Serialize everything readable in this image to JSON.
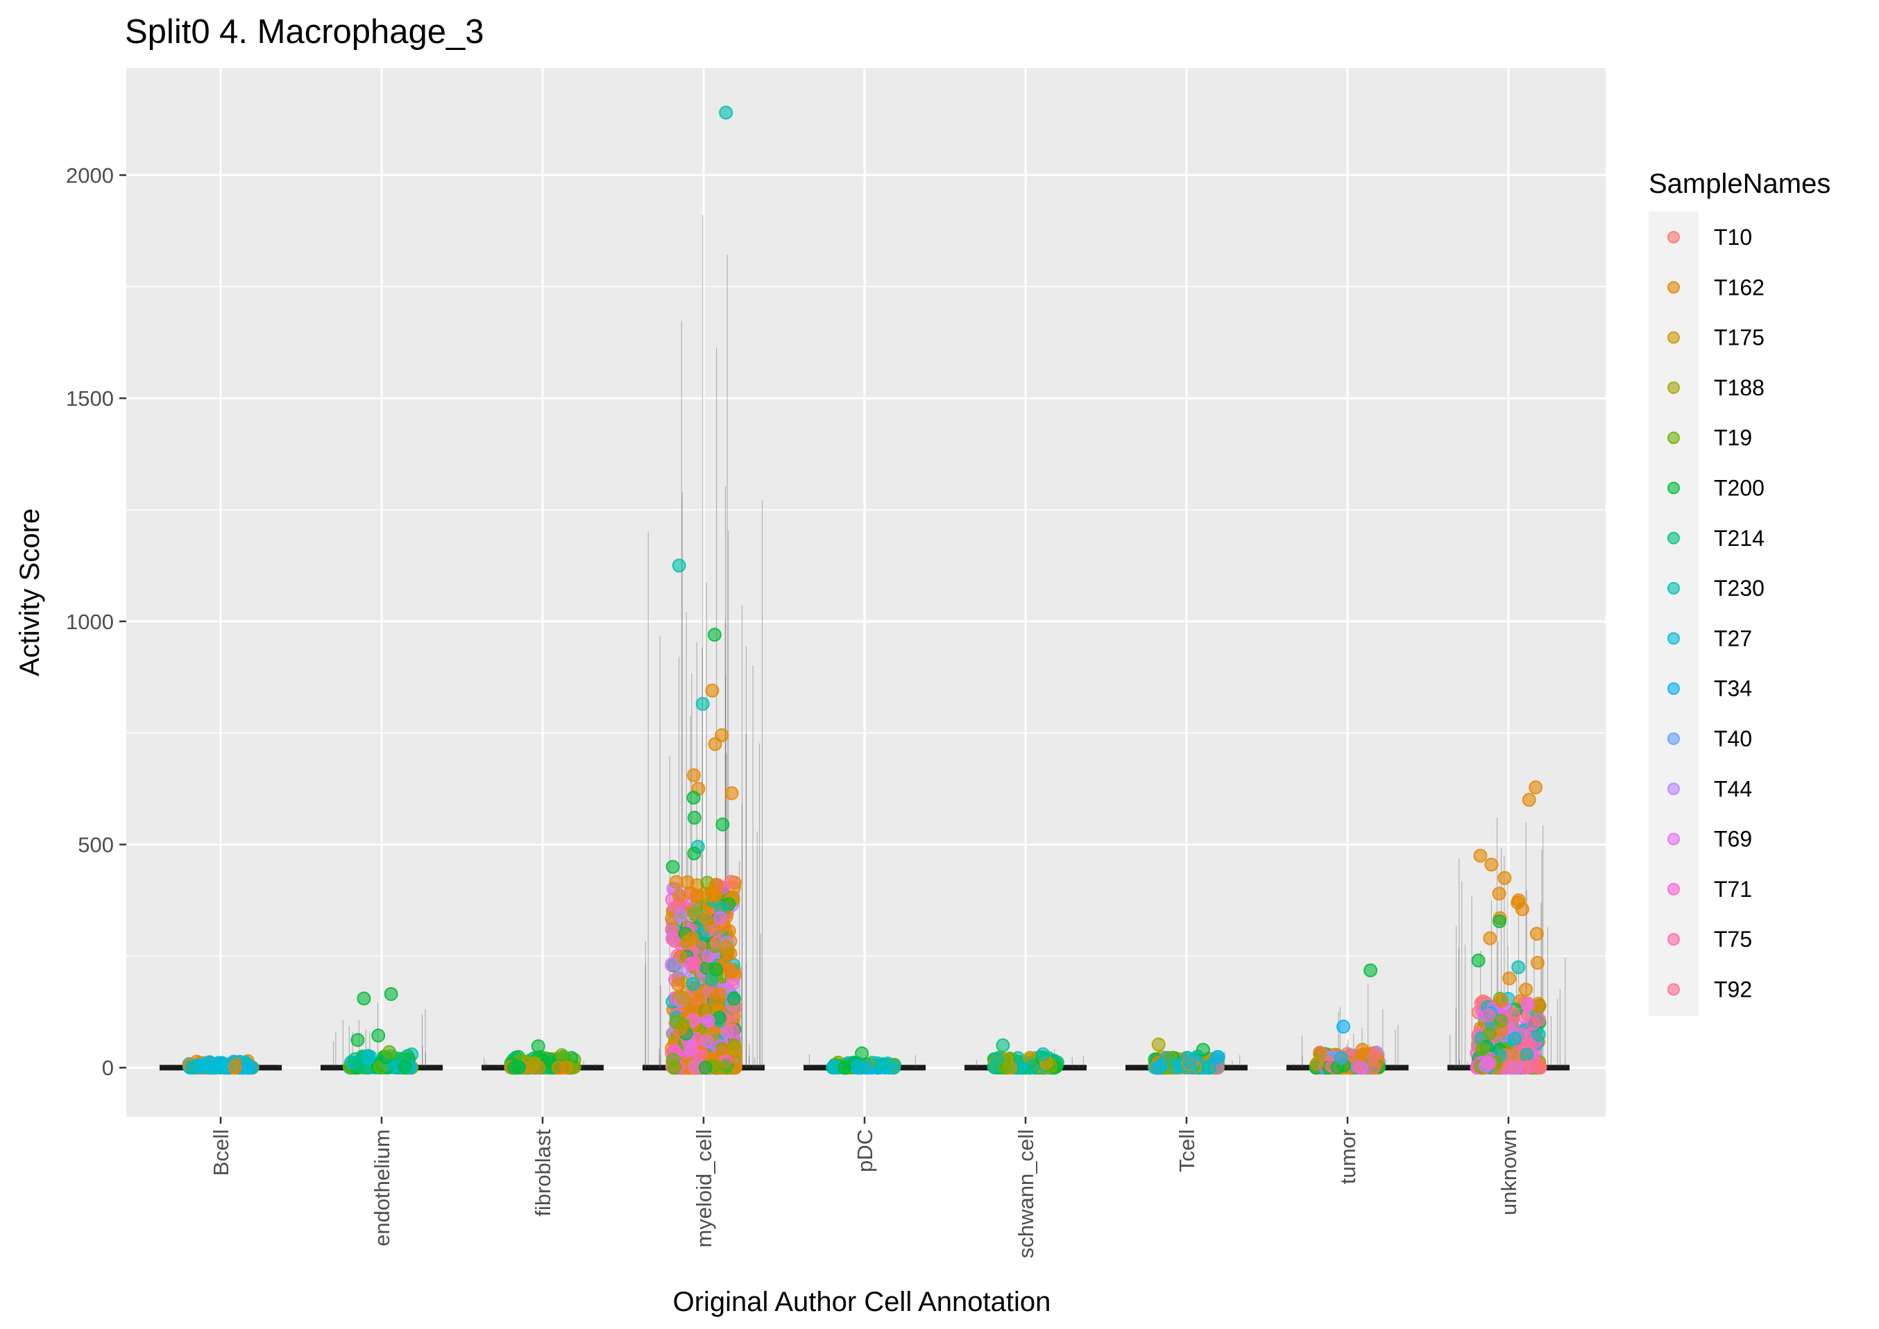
{
  "chart_data": {
    "type": "scatter",
    "subtype": "jittered strip plot with violin outlines",
    "title": "Split0 4. Macrophage_3",
    "xlabel": "Original Author Cell Annotation",
    "ylabel": "Activity Score",
    "ylim": [
      -110,
      2240
    ],
    "yticks": [
      0,
      500,
      1000,
      1500,
      2000
    ],
    "ytick_labels": [
      "0",
      "500",
      "1000",
      "1500",
      "2000"
    ],
    "categories": [
      "Bcell",
      "endothelium",
      "fibroblast",
      "myeloid_cell",
      "pDC",
      "schwann_cell",
      "Tcell",
      "tumor",
      "unknown"
    ],
    "grid": true,
    "legend": {
      "title": "SampleNames",
      "position": "right",
      "entries": [
        {
          "label": "T10",
          "color": "#F8766D"
        },
        {
          "label": "T162",
          "color": "#E58700"
        },
        {
          "label": "T175",
          "color": "#C99800"
        },
        {
          "label": "T188",
          "color": "#A3A500"
        },
        {
          "label": "T19",
          "color": "#6BB100"
        },
        {
          "label": "T200",
          "color": "#00BA38"
        },
        {
          "label": "T214",
          "color": "#00BF7D"
        },
        {
          "label": "T230",
          "color": "#00C0AF"
        },
        {
          "label": "T27",
          "color": "#00BCD8"
        },
        {
          "label": "T34",
          "color": "#00B0F6"
        },
        {
          "label": "T40",
          "color": "#619CFF"
        },
        {
          "label": "T44",
          "color": "#B983FF"
        },
        {
          "label": "T69",
          "color": "#E76BF3"
        },
        {
          "label": "T71",
          "color": "#FD61D1"
        },
        {
          "label": "T75",
          "color": "#FF67A4"
        },
        {
          "label": "T92",
          "color": "#FF6C91"
        }
      ]
    },
    "summary_max_per_category": [
      {
        "category": "Bcell",
        "max": 15
      },
      {
        "category": "endothelium",
        "max": 170
      },
      {
        "category": "fibroblast",
        "max": 50
      },
      {
        "category": "myeloid_cell",
        "max": 2140
      },
      {
        "category": "pDC",
        "max": 35
      },
      {
        "category": "schwann_cell",
        "max": 55
      },
      {
        "category": "Tcell",
        "max": 55
      },
      {
        "category": "tumor",
        "max": 220
      },
      {
        "category": "unknown",
        "max": 630
      }
    ],
    "points": [
      {
        "category": "myeloid_cell",
        "value": 2140,
        "sample": "T230"
      },
      {
        "category": "myeloid_cell",
        "value": 1125,
        "sample": "T230"
      },
      {
        "category": "myeloid_cell",
        "value": 970,
        "sample": "T200"
      },
      {
        "category": "myeloid_cell",
        "value": 845,
        "sample": "T162"
      },
      {
        "category": "myeloid_cell",
        "value": 815,
        "sample": "T230"
      },
      {
        "category": "myeloid_cell",
        "value": 745,
        "sample": "T162"
      },
      {
        "category": "myeloid_cell",
        "value": 725,
        "sample": "T162"
      },
      {
        "category": "myeloid_cell",
        "value": 655,
        "sample": "T162"
      },
      {
        "category": "myeloid_cell",
        "value": 625,
        "sample": "T162"
      },
      {
        "category": "myeloid_cell",
        "value": 615,
        "sample": "T162"
      },
      {
        "category": "myeloid_cell",
        "value": 605,
        "sample": "T200"
      },
      {
        "category": "myeloid_cell",
        "value": 560,
        "sample": "T200"
      },
      {
        "category": "myeloid_cell",
        "value": 545,
        "sample": "T200"
      },
      {
        "category": "myeloid_cell",
        "value": 495,
        "sample": "T230"
      },
      {
        "category": "myeloid_cell",
        "value": 480,
        "sample": "T200"
      },
      {
        "category": "myeloid_cell",
        "value": 450,
        "sample": "T200"
      },
      {
        "category": "myeloid_cell",
        "value": 335,
        "sample": "T69"
      },
      {
        "category": "myeloid_cell",
        "value": 220,
        "sample": "T200"
      },
      {
        "category": "myeloid_cell",
        "value": 105,
        "sample": "T69"
      },
      {
        "category": "endothelium",
        "value": 165,
        "sample": "T200"
      },
      {
        "category": "endothelium",
        "value": 155,
        "sample": "T200"
      },
      {
        "category": "endothelium",
        "value": 72,
        "sample": "T200"
      },
      {
        "category": "endothelium",
        "value": 62,
        "sample": "T200"
      },
      {
        "category": "endothelium",
        "value": 35,
        "sample": "T19"
      },
      {
        "category": "fibroblast",
        "value": 48,
        "sample": "T200"
      },
      {
        "category": "fibroblast",
        "value": 28,
        "sample": "T19"
      },
      {
        "category": "pDC",
        "value": 32,
        "sample": "T200"
      },
      {
        "category": "schwann_cell",
        "value": 50,
        "sample": "T214"
      },
      {
        "category": "schwann_cell",
        "value": 30,
        "sample": "T230"
      },
      {
        "category": "Tcell",
        "value": 52,
        "sample": "T188"
      },
      {
        "category": "Tcell",
        "value": 40,
        "sample": "T200"
      },
      {
        "category": "tumor",
        "value": 218,
        "sample": "T200"
      },
      {
        "category": "tumor",
        "value": 92,
        "sample": "T34"
      },
      {
        "category": "tumor",
        "value": 40,
        "sample": "T162"
      },
      {
        "category": "unknown",
        "value": 628,
        "sample": "T162"
      },
      {
        "category": "unknown",
        "value": 600,
        "sample": "T162"
      },
      {
        "category": "unknown",
        "value": 475,
        "sample": "T162"
      },
      {
        "category": "unknown",
        "value": 455,
        "sample": "T162"
      },
      {
        "category": "unknown",
        "value": 425,
        "sample": "T162"
      },
      {
        "category": "unknown",
        "value": 390,
        "sample": "T162"
      },
      {
        "category": "unknown",
        "value": 375,
        "sample": "T162"
      },
      {
        "category": "unknown",
        "value": 370,
        "sample": "T162"
      },
      {
        "category": "unknown",
        "value": 355,
        "sample": "T162"
      },
      {
        "category": "unknown",
        "value": 335,
        "sample": "T162"
      },
      {
        "category": "unknown",
        "value": 328,
        "sample": "T200"
      },
      {
        "category": "unknown",
        "value": 300,
        "sample": "T162"
      },
      {
        "category": "unknown",
        "value": 290,
        "sample": "T162"
      },
      {
        "category": "unknown",
        "value": 240,
        "sample": "T200"
      },
      {
        "category": "unknown",
        "value": 235,
        "sample": "T162"
      },
      {
        "category": "unknown",
        "value": 225,
        "sample": "T230"
      },
      {
        "category": "unknown",
        "value": 200,
        "sample": "T162"
      },
      {
        "category": "unknown",
        "value": 175,
        "sample": "T162"
      },
      {
        "category": "unknown",
        "value": 150,
        "sample": "T162"
      },
      {
        "category": "unknown",
        "value": 140,
        "sample": "T69"
      },
      {
        "category": "unknown",
        "value": 105,
        "sample": "T19"
      }
    ],
    "bulk_ranges": [
      {
        "category": "Bcell",
        "max": 15,
        "samples": [
          "T27",
          "T230",
          "T34",
          "T162"
        ],
        "count": 120
      },
      {
        "category": "endothelium",
        "max": 30,
        "samples": [
          "T200",
          "T19",
          "T214",
          "T230",
          "T27"
        ],
        "count": 120
      },
      {
        "category": "fibroblast",
        "max": 25,
        "samples": [
          "T19",
          "T200",
          "T188",
          "T214",
          "T162"
        ],
        "count": 140
      },
      {
        "category": "myeloid_cell",
        "max": 420,
        "samples": [
          "T162",
          "T162",
          "T162",
          "T162",
          "T200",
          "T19",
          "T175",
          "T230",
          "T69",
          "T44",
          "T10",
          "T71"
        ],
        "count": 900
      },
      {
        "category": "pDC",
        "max": 12,
        "samples": [
          "T34",
          "T27",
          "T230",
          "T200",
          "T19"
        ],
        "count": 80
      },
      {
        "category": "schwann_cell",
        "max": 25,
        "samples": [
          "T200",
          "T19",
          "T214",
          "T230",
          "T175"
        ],
        "count": 140
      },
      {
        "category": "Tcell",
        "max": 25,
        "samples": [
          "T27",
          "T34",
          "T230",
          "T200",
          "T19",
          "T175",
          "T162",
          "T10"
        ],
        "count": 220
      },
      {
        "category": "tumor",
        "max": 35,
        "samples": [
          "T10",
          "T162",
          "T200",
          "T69",
          "T44",
          "T92",
          "T175",
          "T27"
        ],
        "count": 200
      },
      {
        "category": "unknown",
        "max": 160,
        "samples": [
          "T162",
          "T200",
          "T10",
          "T69",
          "T44",
          "T71",
          "T230",
          "T27",
          "T19",
          "T92",
          "T75"
        ],
        "count": 380
      }
    ]
  }
}
